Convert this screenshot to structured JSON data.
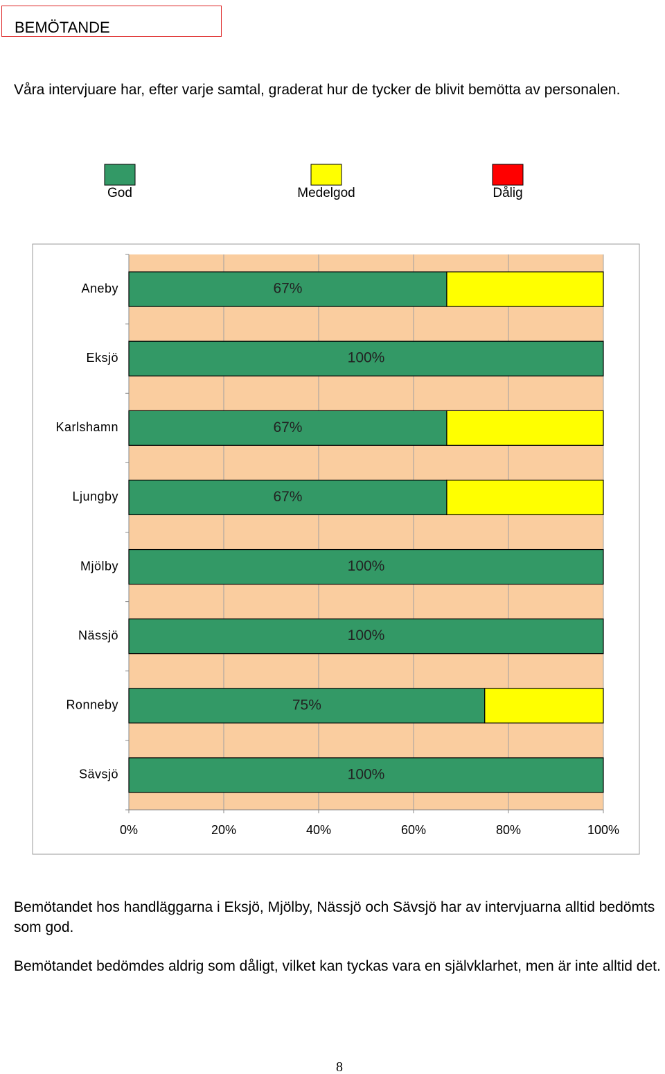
{
  "heading": "BEMÖTANDE",
  "intro": "Våra intervjuare har, efter varje samtal, graderat hur de tycker de blivit bemötta av personalen.",
  "chart_data": {
    "type": "stacked-bar-horizontal",
    "categories": [
      "Aneby",
      "Eksjö",
      "Karlshamn",
      "Ljungby",
      "Mjölby",
      "Nässjö",
      "Ronneby",
      "Sävsjö"
    ],
    "series": [
      {
        "name": "God",
        "color": "#339966",
        "values": [
          67,
          100,
          67,
          67,
          100,
          100,
          75,
          100
        ],
        "value_labels": [
          "67%",
          "100%",
          "67%",
          "67%",
          "100%",
          "100%",
          "75%",
          "100%"
        ]
      },
      {
        "name": "Medelgod",
        "color": "#ffff00",
        "values": [
          33,
          0,
          33,
          33,
          0,
          0,
          25,
          0
        ]
      },
      {
        "name": "Dålig",
        "color": "#ff0000",
        "values": [
          0,
          0,
          0,
          0,
          0,
          0,
          0,
          0
        ]
      }
    ],
    "xlim": [
      0,
      100
    ],
    "xticks": [
      {
        "value": 0,
        "label": "0%"
      },
      {
        "value": 20,
        "label": "20%"
      },
      {
        "value": 40,
        "label": "40%"
      },
      {
        "value": 60,
        "label": "60%"
      },
      {
        "value": 80,
        "label": "80%"
      },
      {
        "value": 100,
        "label": "100%"
      }
    ],
    "grid": true,
    "legend": "top",
    "background": "#facd9f"
  },
  "paragraphs": [
    "Bemötandet hos handläggarna i Eksjö, Mjölby, Nässjö och Sävsjö har av intervjuarna alltid bedömts som god.",
    "Bemötandet bedömdes aldrig som dåligt, vilket kan tyckas vara en självklarhet, men är inte alltid det."
  ],
  "page_number": "8"
}
